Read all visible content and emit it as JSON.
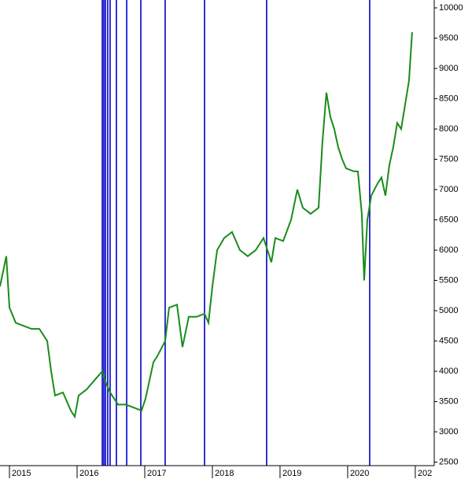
{
  "chart_data": {
    "type": "line",
    "x": [
      2014.86,
      2014.953,
      2015.0,
      2015.093,
      2015.209,
      2015.326,
      2015.442,
      2015.558,
      2015.616,
      2015.674,
      2015.791,
      2015.907,
      2015.965,
      2016.023,
      2016.14,
      2016.256,
      2016.372,
      2016.43,
      2016.488,
      2016.605,
      2016.721,
      2016.837,
      2016.953,
      2017.012,
      2017.07,
      2017.128,
      2017.186,
      2017.302,
      2017.36,
      2017.477,
      2017.558,
      2017.651,
      2017.767,
      2017.884,
      2017.942,
      2018.0,
      2018.07,
      2018.174,
      2018.291,
      2018.407,
      2018.523,
      2018.64,
      2018.756,
      2018.872,
      2018.93,
      2019.047,
      2019.163,
      2019.256,
      2019.337,
      2019.453,
      2019.57,
      2019.628,
      2019.686,
      2019.744,
      2019.802,
      2019.86,
      2019.919,
      2019.977,
      2020.093,
      2020.151,
      2020.209,
      2020.244,
      2020.291,
      2020.349,
      2020.442,
      2020.5,
      2020.558,
      2020.616,
      2020.674,
      2020.733,
      2020.791,
      2020.849,
      2020.907,
      2020.953
    ],
    "series": [
      {
        "color": "#1a8c1a",
        "values": [
          5400,
          5900,
          5050,
          4800,
          4750,
          4700,
          4700,
          4500,
          4000,
          3600,
          3650,
          3350,
          3250,
          3600,
          3700,
          3850,
          4000,
          3800,
          3650,
          3450,
          3450,
          3400,
          3350,
          3550,
          3850,
          4150,
          4250,
          4500,
          5050,
          5100,
          4400,
          4900,
          4900,
          4950,
          4800,
          5400,
          6000,
          6200,
          6300,
          6000,
          5900,
          6000,
          6200,
          5800,
          6200,
          6150,
          6500,
          7000,
          6700,
          6600,
          6700,
          7800,
          8600,
          8200,
          8000,
          7700,
          7500,
          7350,
          7300,
          7300,
          6600,
          5500,
          6500,
          6900,
          7100,
          7200,
          6900,
          7400,
          7700,
          8100,
          8000,
          8400,
          8800,
          9600
        ]
      }
    ],
    "vlines": {
      "color": "#0000c8",
      "x": [
        2016.372,
        2016.395,
        2016.419,
        2016.453,
        2016.488,
        2016.581,
        2016.733,
        2016.942,
        2017.302,
        2017.884,
        2018.802,
        2020.326
      ]
    },
    "xlim": [
      2014.86,
      2021.28
    ],
    "xticks": [
      2015,
      2016,
      2017,
      2018,
      2019,
      2020,
      {
        "value": 2021,
        "label": "202"
      }
    ],
    "ylim": [
      2442,
      10130
    ],
    "yticks": [
      2500,
      3000,
      3500,
      4000,
      4500,
      5000,
      5500,
      6000,
      6500,
      7000,
      7500,
      8000,
      8500,
      9000,
      9500,
      10000
    ]
  }
}
